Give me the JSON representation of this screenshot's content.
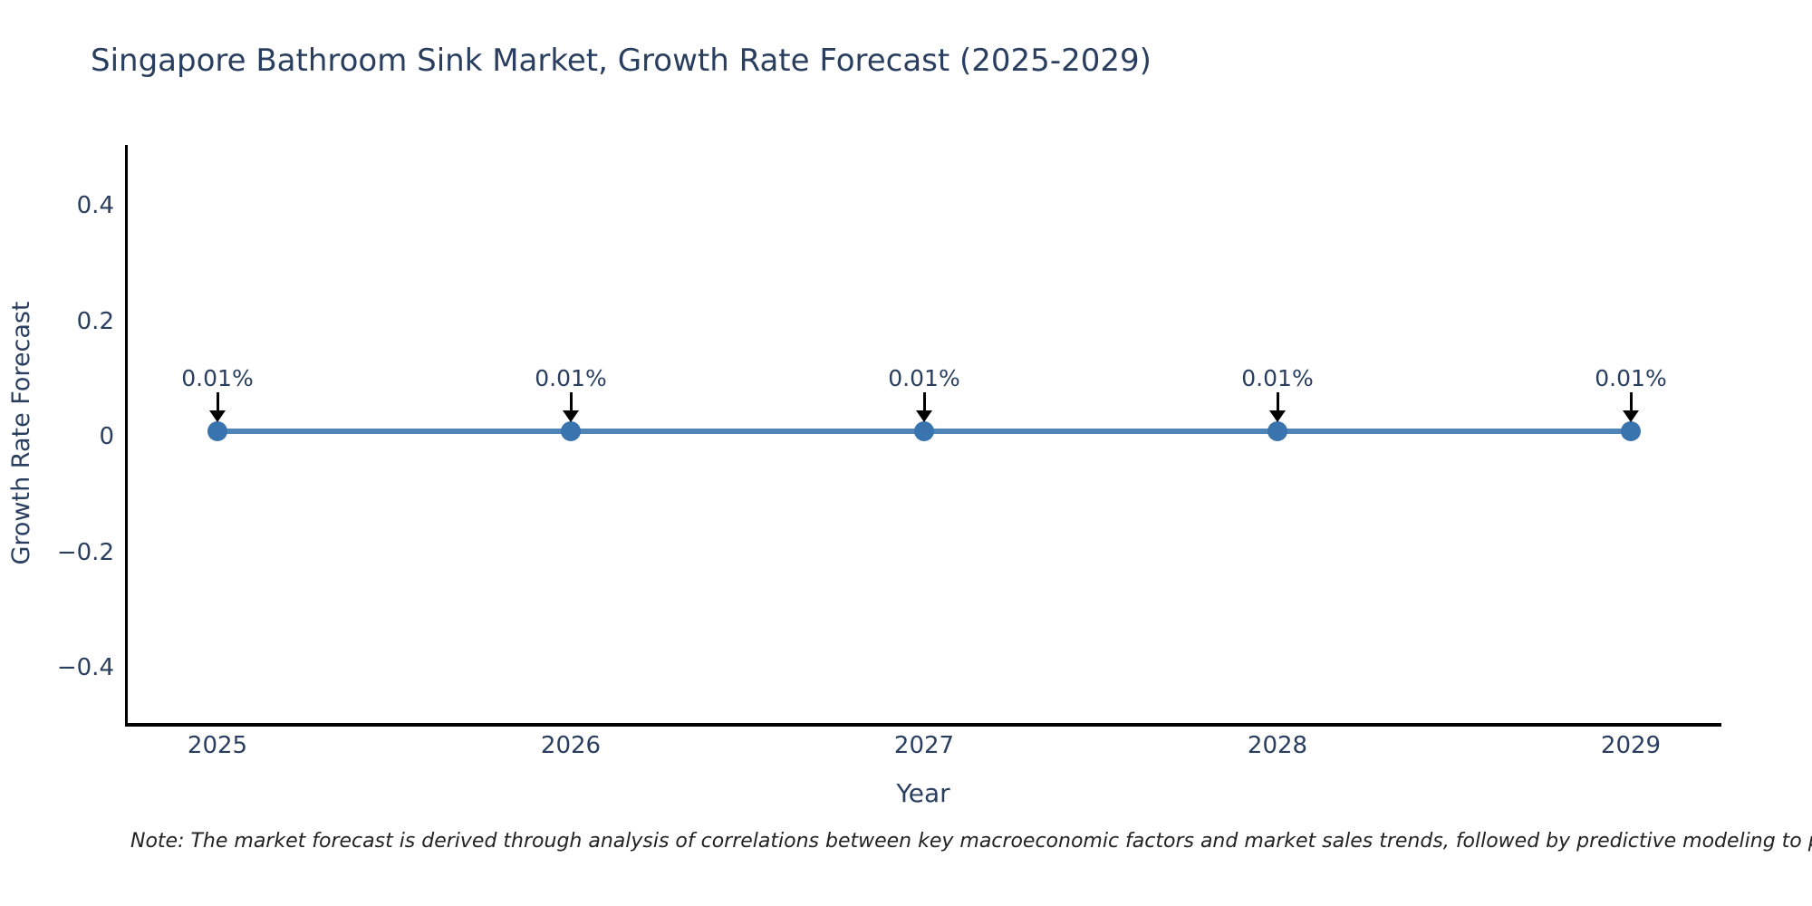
{
  "chart_data": {
    "type": "line",
    "title": "Singapore Bathroom Sink Market, Growth Rate Forecast (2025-2029)",
    "xlabel": "Year",
    "ylabel": "Growth Rate Forecast",
    "categories": [
      "2025",
      "2026",
      "2027",
      "2028",
      "2029"
    ],
    "series": [
      {
        "name": "Growth Rate Forecast",
        "values": [
          0.01,
          0.01,
          0.01,
          0.01,
          0.01
        ]
      }
    ],
    "point_labels": [
      "0.01%",
      "0.01%",
      "0.01%",
      "0.01%",
      "0.01%"
    ],
    "ytick_values": [
      0.4,
      0.2,
      0,
      -0.2,
      -0.4
    ],
    "ytick_labels": [
      "0.4",
      "0.2",
      "0",
      "−0.2",
      "−0.4"
    ],
    "ylim": [
      -0.5,
      0.5
    ],
    "grid": false,
    "legend": "none",
    "note": "Note: The market forecast is derived through analysis of correlations between key macroeconomic factors and market sales trends, followed by predictive modeling to project future sa",
    "colors": {
      "line": "#4e84b8",
      "marker": "#3a74af",
      "axis": "#000000",
      "text": "#2a3f5f",
      "arrow": "#000000"
    }
  }
}
